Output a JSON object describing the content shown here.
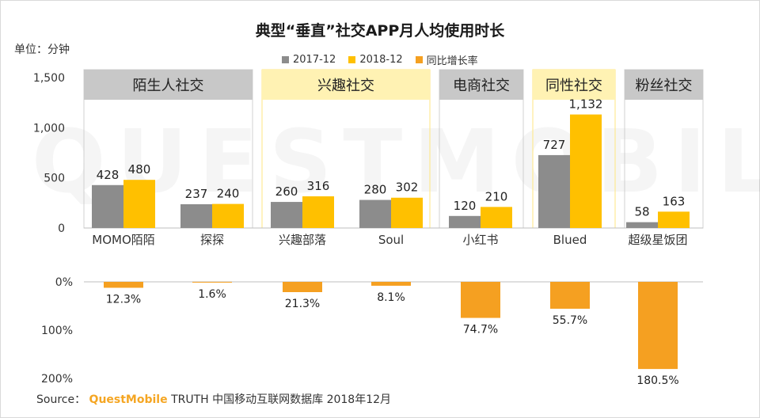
{
  "chart_data": {
    "type": "bar",
    "title": "典型“垂直”社交APP月人均使用时长",
    "unit_label": "单位：分钟",
    "legend": [
      "2017-12",
      "2018-12",
      "同比增长率"
    ],
    "colors": {
      "s2017": "#8c8c8c",
      "s2018": "#ffc000",
      "growth": "#f5a021",
      "group_gray": "#c8c8c8",
      "group_yellow": "#fff2b3"
    },
    "groups": [
      {
        "label": "陌生人社交",
        "style": "gray",
        "categories": [
          0,
          1
        ]
      },
      {
        "label": "兴趣社交",
        "style": "yellow",
        "categories": [
          2,
          3
        ]
      },
      {
        "label": "电商社交",
        "style": "gray",
        "categories": [
          4
        ]
      },
      {
        "label": "同性社交",
        "style": "yellow",
        "categories": [
          5
        ]
      },
      {
        "label": "粉丝社交",
        "style": "gray",
        "categories": [
          6
        ]
      }
    ],
    "categories": [
      "MOMO陌陌",
      "探探",
      "兴趣部落",
      "Soul",
      "小红书",
      "Blued",
      "超级星饭团"
    ],
    "series": [
      {
        "name": "2017-12",
        "values": [
          428,
          237,
          260,
          280,
          120,
          727,
          58
        ],
        "labels": [
          "428",
          "237",
          "260",
          "280",
          "120",
          "727",
          "58"
        ]
      },
      {
        "name": "2018-12",
        "values": [
          480,
          240,
          316,
          302,
          210,
          1132,
          163
        ],
        "labels": [
          "480",
          "240",
          "316",
          "302",
          "210",
          "1,132",
          "163"
        ]
      }
    ],
    "growth": {
      "name": "同比增长率",
      "values": [
        12.3,
        1.6,
        21.3,
        8.1,
        74.7,
        55.7,
        180.5
      ],
      "labels": [
        "12.3%",
        "1.6%",
        "21.3%",
        "8.1%",
        "74.7%",
        "55.7%",
        "180.5%"
      ]
    },
    "y_axis_top": {
      "min": 0,
      "max": 1500,
      "ticks": [
        0,
        500,
        1000,
        1500
      ],
      "tick_labels": [
        "0",
        "500",
        "1,000",
        "1,500"
      ]
    },
    "y_axis_bottom": {
      "min": 0,
      "max": 200,
      "ticks": [
        0,
        100,
        200
      ],
      "tick_labels": [
        "0%",
        "100%",
        "200%"
      ]
    }
  },
  "source": {
    "prefix": "Source：",
    "brand": "QuestMobile",
    "rest": "TRUTH 中国移动互联网数据库 2018年12月"
  },
  "watermark": "QUESTMOBILE"
}
